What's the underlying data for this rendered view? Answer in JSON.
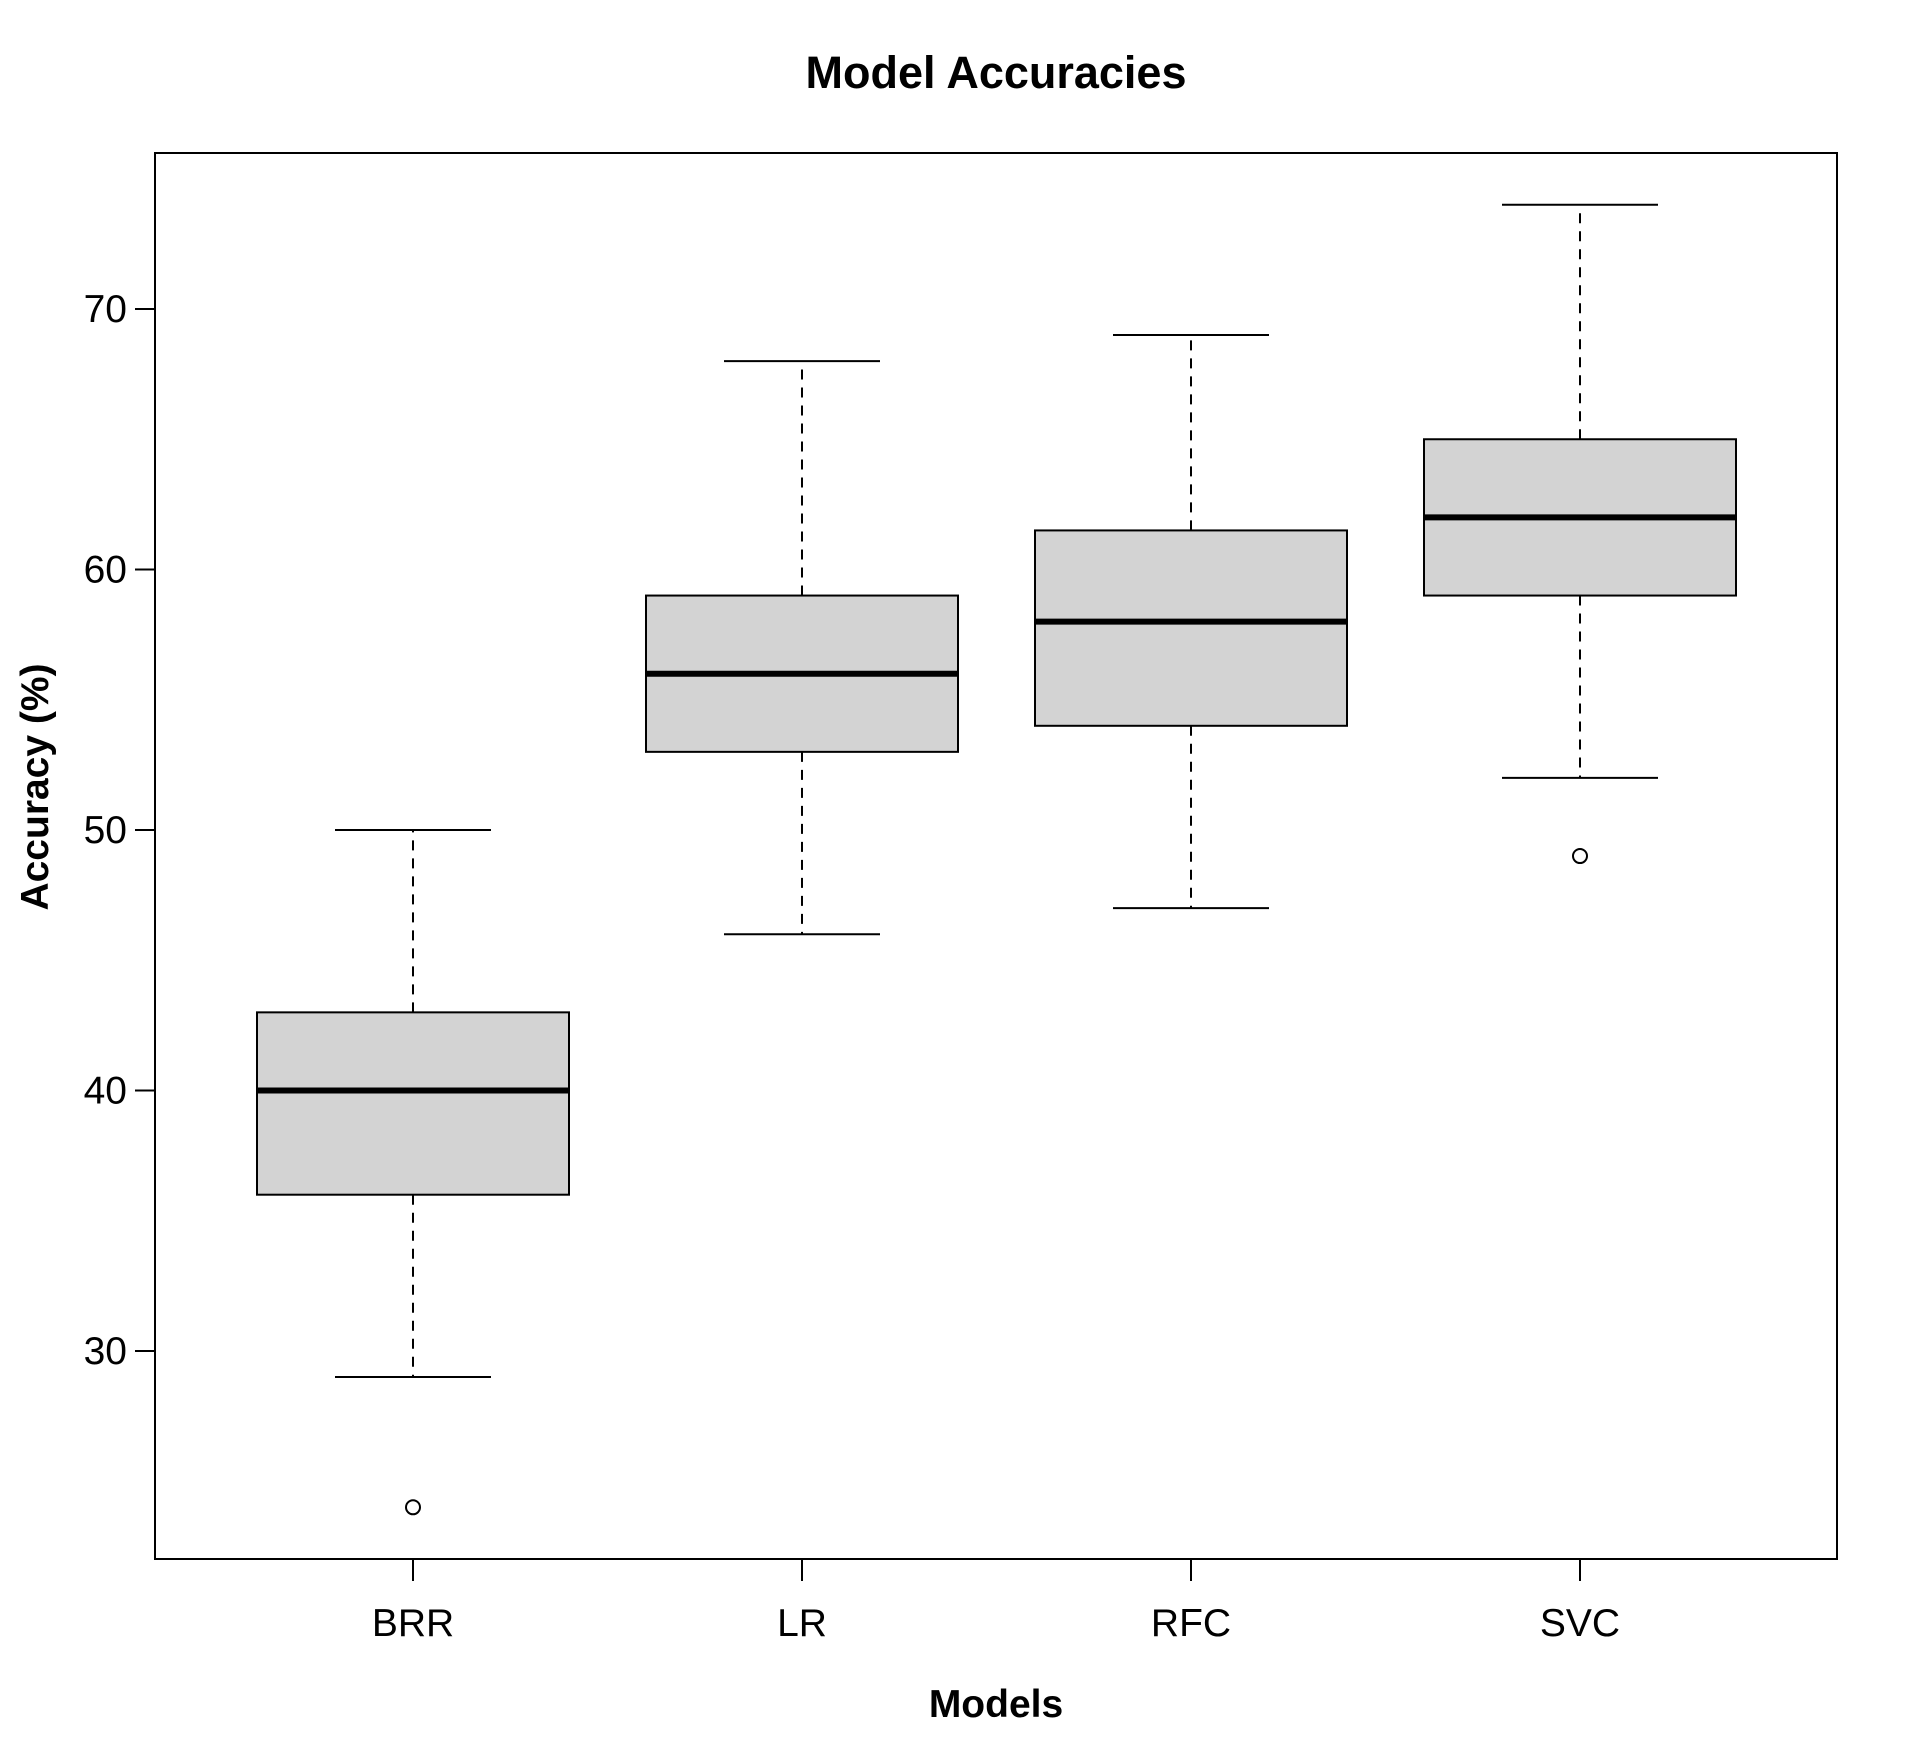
{
  "chart_data": {
    "type": "box",
    "title": "Model Accuracies",
    "xlabel": "Models",
    "ylabel": "Accuracy (%)",
    "categories": [
      "BRR",
      "LR",
      "RFC",
      "SVC"
    ],
    "yticks": [
      30,
      40,
      50,
      60,
      70
    ],
    "ylim": [
      22,
      76
    ],
    "grid": false,
    "box_fill": "#d3d3d3",
    "series": [
      {
        "category": "BRR",
        "whisker_low": 29,
        "q1": 36,
        "median": 40,
        "q3": 43,
        "whisker_high": 50,
        "outliers": [
          24
        ]
      },
      {
        "category": "LR",
        "whisker_low": 46,
        "q1": 53,
        "median": 56,
        "q3": 59,
        "whisker_high": 68,
        "outliers": []
      },
      {
        "category": "RFC",
        "whisker_low": 47,
        "q1": 54,
        "median": 58,
        "q3": 61.5,
        "whisker_high": 69,
        "outliers": []
      },
      {
        "category": "SVC",
        "whisker_low": 52,
        "q1": 59,
        "median": 62,
        "q3": 65,
        "whisker_high": 74,
        "outliers": [
          49
        ]
      }
    ]
  }
}
